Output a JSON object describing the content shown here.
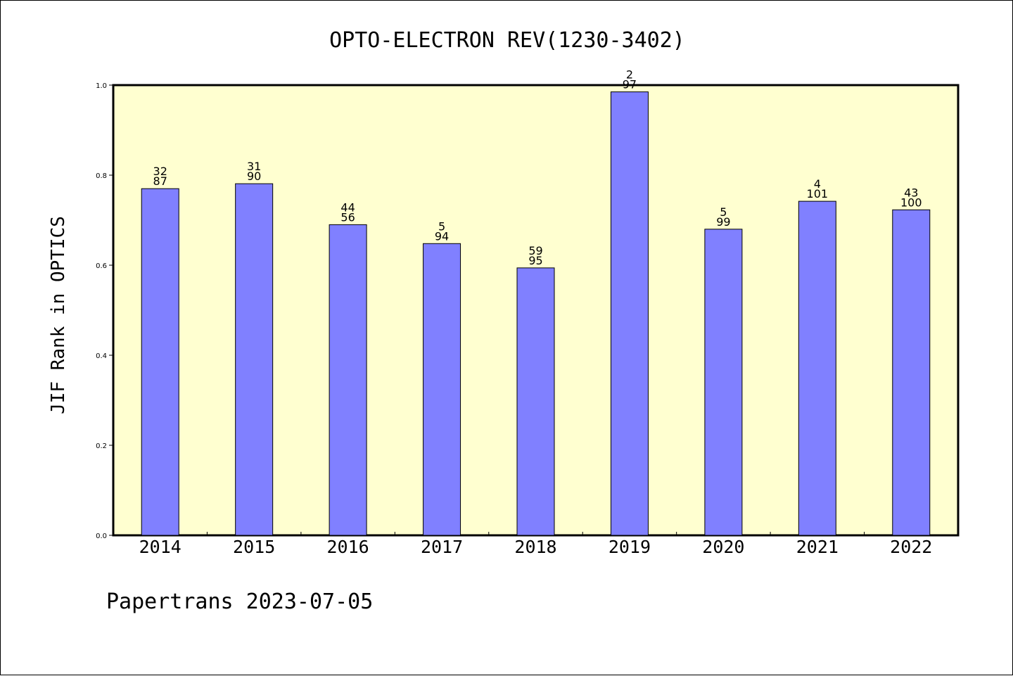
{
  "chart_data": {
    "type": "bar",
    "title": "OPTO-ELECTRON REV(1230-3402)",
    "ylabel": "JIF Rank in OPTICS",
    "xlabel": "",
    "footer": "Papertrans 2023-07-05",
    "categories": [
      "2014",
      "2015",
      "2016",
      "2017",
      "2018",
      "2019",
      "2020",
      "2021",
      "2022"
    ],
    "values": [
      0.77,
      0.781,
      0.69,
      0.648,
      0.594,
      0.985,
      0.68,
      0.742,
      0.723
    ],
    "rank": [
      "32",
      "31",
      "44",
      "5",
      "59",
      "2",
      "5",
      "4",
      "43"
    ],
    "total": [
      "87",
      "90",
      "56",
      "94",
      "95",
      "97",
      "99",
      "101",
      "100"
    ],
    "ylim": [
      0,
      1.0
    ],
    "yticks": [
      "0.0",
      "0.2",
      "0.4",
      "0.6",
      "0.8",
      "1.0"
    ],
    "grid": false,
    "colors": {
      "bar": "#8080ff",
      "plot_background": "#ffffd0",
      "axes": "#000000"
    }
  }
}
